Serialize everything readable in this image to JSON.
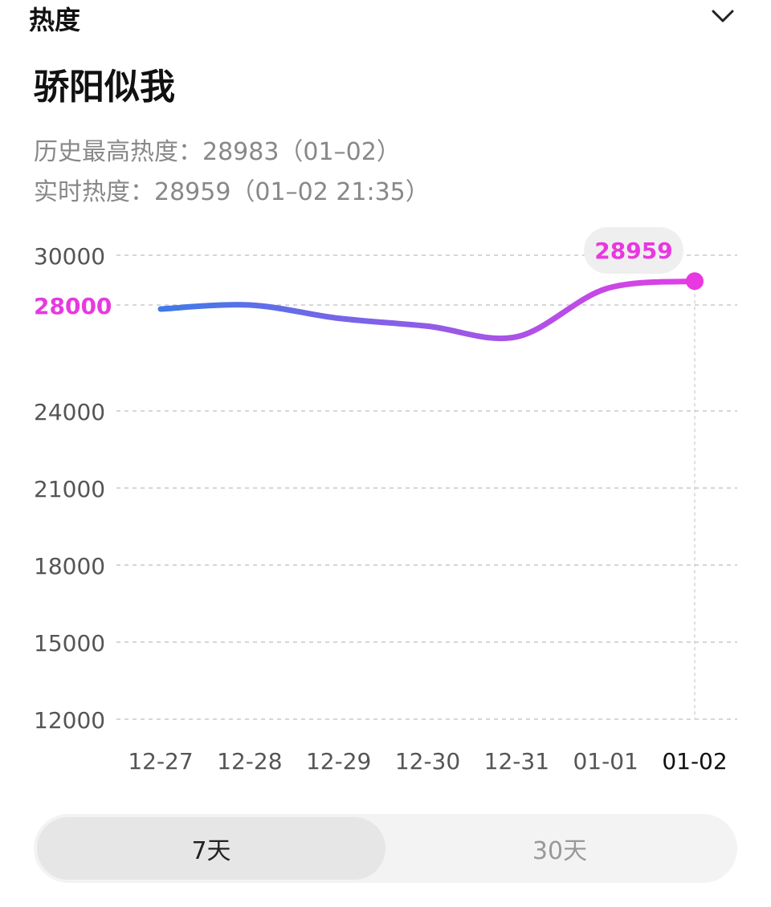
{
  "header": {
    "title": "热度"
  },
  "page_title": "骄阳似我",
  "stats": {
    "history_high": "历史最高热度：28983（01–02）",
    "realtime": "实时热度：28959（01–02 21:35）"
  },
  "colors": {
    "accent": "#e838e0",
    "line_start": "#3f7ae8",
    "line_end": "#e23ee6",
    "grid": "#c8c8c8",
    "axis_text": "#555555"
  },
  "chart_data": {
    "type": "line",
    "y_ticks": [
      30000,
      28000,
      24000,
      21000,
      18000,
      15000,
      12000
    ],
    "highlight_tick": 28000,
    "ylim": [
      12000,
      30000
    ],
    "categories": [
      "12-27",
      "12-28",
      "12-29",
      "12-30",
      "12-31",
      "01-01",
      "01-02"
    ],
    "highlight_category": "01-02",
    "series": [
      {
        "values": [
          27850,
          28000,
          27500,
          27200,
          26800,
          28650,
          28959
        ]
      }
    ],
    "current_label": "28959"
  },
  "tabs": [
    {
      "label": "7天",
      "active": true
    },
    {
      "label": "30天",
      "active": false
    }
  ]
}
